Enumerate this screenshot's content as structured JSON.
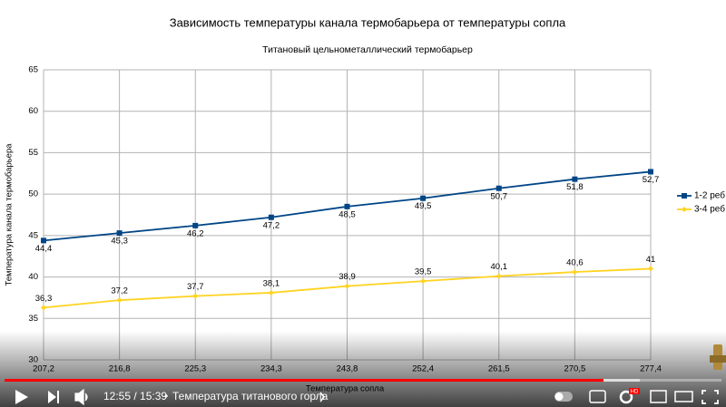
{
  "chart_data": {
    "type": "line",
    "title": "Зависимость температуры канала термобарьера от температуры сопла",
    "subtitle": "Титановый цельнометаллический термобарьер",
    "y_label": "Температура канала термобарьера",
    "x_label": "Температура сопла",
    "categories": [
      "207,2",
      "216,8",
      "225,3",
      "234,3",
      "243,8",
      "252,4",
      "261,5",
      "270,5",
      "277,4"
    ],
    "series": [
      {
        "name": "1-2 реб",
        "color": "#004586",
        "marker": "square",
        "values": [
          44.4,
          45.3,
          46.2,
          47.2,
          48.5,
          49.5,
          50.7,
          51.8,
          52.7
        ],
        "value_labels": [
          "44,4",
          "45,3",
          "46,2",
          "47,2",
          "48,5",
          "49,5",
          "50,7",
          "51,8",
          "52,7"
        ]
      },
      {
        "name": "3-4 реб",
        "color": "#ffd320",
        "marker": "diamond",
        "values": [
          36.3,
          37.2,
          37.7,
          38.1,
          38.9,
          39.5,
          40.1,
          40.6,
          41
        ],
        "value_labels": [
          "36,3",
          "37,2",
          "37,7",
          "38,1",
          "38,9",
          "39,5",
          "40,1",
          "40,6",
          "41"
        ]
      }
    ],
    "ylim": [
      30,
      65
    ],
    "yticks": [
      30,
      35,
      40,
      45,
      50,
      55,
      60,
      65
    ],
    "grid": true
  },
  "player": {
    "time": "12:55 / 15:39",
    "separator": "•",
    "chapter": "Температура титанового горла",
    "badge": "HD"
  }
}
